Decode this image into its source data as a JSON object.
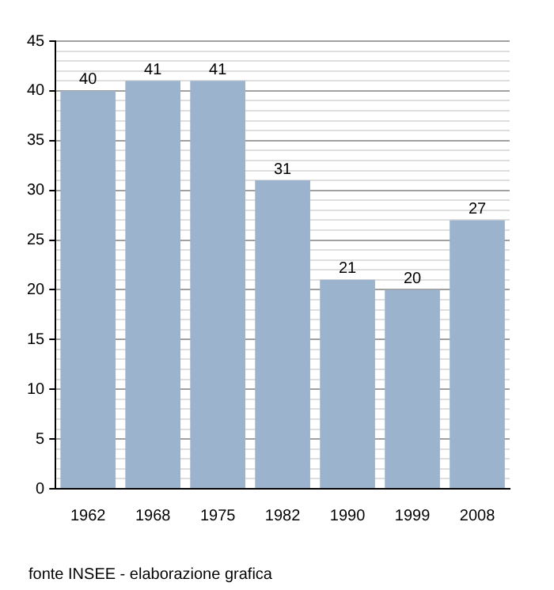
{
  "chart_data": {
    "type": "bar",
    "categories": [
      "1962",
      "1968",
      "1975",
      "1982",
      "1990",
      "1999",
      "2008"
    ],
    "values": [
      40,
      41,
      41,
      31,
      21,
      20,
      27
    ],
    "color": "#9bb3cc",
    "ylim": [
      0,
      45
    ],
    "yticks": [
      0,
      {
        "value": 1,
        "label": null
      },
      {
        "value": 2,
        "label": null
      },
      {
        "value": 3,
        "label": null
      },
      {
        "value": 4,
        "label": null
      },
      5,
      {
        "value": 6,
        "label": null
      },
      {
        "value": 7,
        "label": null
      },
      {
        "value": 8,
        "label": null
      },
      {
        "value": 9,
        "label": null
      },
      10,
      {
        "value": 11,
        "label": null
      },
      {
        "value": 12,
        "label": null
      },
      {
        "value": 13,
        "label": null
      },
      {
        "value": 14,
        "label": null
      },
      15,
      {
        "value": 16,
        "label": null
      },
      {
        "value": 17,
        "label": null
      },
      {
        "value": 18,
        "label": null
      },
      {
        "value": 19,
        "label": null
      },
      20,
      {
        "value": 21,
        "label": null
      },
      {
        "value": 22,
        "label": null
      },
      {
        "value": 23,
        "label": null
      },
      {
        "value": 24,
        "label": null
      },
      25,
      {
        "value": 26,
        "label": null
      },
      {
        "value": 27,
        "label": null
      },
      {
        "value": 28,
        "label": null
      },
      {
        "value": 29,
        "label": null
      },
      30,
      {
        "value": 31,
        "label": null
      },
      {
        "value": 32,
        "label": null
      },
      {
        "value": 33,
        "label": null
      },
      {
        "value": 34,
        "label": null
      },
      35,
      {
        "value": 36,
        "label": null
      },
      {
        "value": 37,
        "label": null
      },
      {
        "value": 38,
        "label": null
      },
      {
        "value": 39,
        "label": null
      },
      40,
      {
        "value": 41,
        "label": null
      },
      {
        "value": 42,
        "label": null
      },
      {
        "value": 43,
        "label": null
      },
      {
        "value": 44,
        "label": null
      },
      45
    ],
    "grid": "y",
    "data_labels": true,
    "annotations": [
      "fonte INSEE - elaborazione grafica"
    ]
  }
}
